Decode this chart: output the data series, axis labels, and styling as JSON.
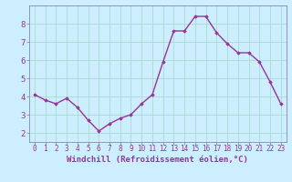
{
  "x": [
    0,
    1,
    2,
    3,
    4,
    5,
    6,
    7,
    8,
    9,
    10,
    11,
    12,
    13,
    14,
    15,
    16,
    17,
    18,
    19,
    20,
    21,
    22,
    23
  ],
  "y": [
    4.1,
    3.8,
    3.6,
    3.9,
    3.4,
    2.7,
    2.1,
    2.5,
    2.8,
    3.0,
    3.6,
    4.1,
    5.9,
    7.6,
    7.6,
    8.4,
    8.4,
    7.5,
    6.9,
    6.4,
    6.4,
    5.9,
    4.8,
    3.6
  ],
  "xlabel": "Windchill (Refroidissement éolien,°C)",
  "ylim": [
    1.5,
    9.0
  ],
  "xlim": [
    -0.5,
    23.5
  ],
  "yticks": [
    2,
    3,
    4,
    5,
    6,
    7,
    8
  ],
  "xticks": [
    0,
    1,
    2,
    3,
    4,
    5,
    6,
    7,
    8,
    9,
    10,
    11,
    12,
    13,
    14,
    15,
    16,
    17,
    18,
    19,
    20,
    21,
    22,
    23
  ],
  "line_color": "#993399",
  "marker": "D",
  "marker_size": 1.8,
  "bg_color": "#cceeff",
  "grid_color": "#aaddcc",
  "axis_label_color": "#993399",
  "tick_label_color": "#993399",
  "xlabel_fontsize": 6.5,
  "tick_fontsize": 5.5,
  "ytick_fontsize": 6.5,
  "linewidth": 1.0,
  "spine_color": "#8888aa"
}
